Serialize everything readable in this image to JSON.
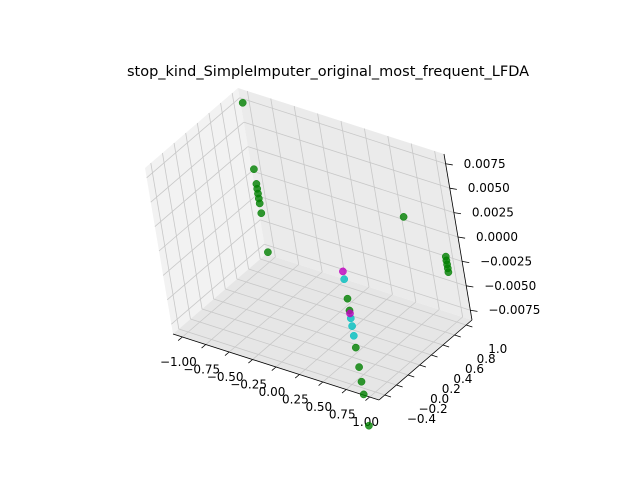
{
  "chart_data": {
    "type": "scatter",
    "projection": "3d",
    "title": "stop_kind_SimpleImputer_original_most_frequent_LFDA",
    "xlabel": "",
    "ylabel": "",
    "zlabel": "",
    "grid": true,
    "x_ticks": [
      "−1.00",
      "−0.75",
      "−0.50",
      "−0.25",
      "0.00",
      "0.25",
      "0.50",
      "0.75",
      "1.00"
    ],
    "y_ticks": [
      "−0.4",
      "−0.2",
      "0.0",
      "0.2",
      "0.4",
      "0.6",
      "0.8",
      "1.0"
    ],
    "z_ticks": [
      "−0.0075",
      "−0.0050",
      "−0.0025",
      "0.0000",
      "0.0025",
      "0.0050",
      "0.0075"
    ],
    "xlim": [
      -1.1,
      1.1
    ],
    "ylim": [
      -0.5,
      1.1
    ],
    "zlim": [
      -0.0085,
      0.0085
    ],
    "series": [
      {
        "color": "#008000",
        "points": [
          [
            -1.0,
            1.0,
            0.0078
          ],
          [
            -1.0,
            1.0,
            0.001
          ],
          [
            -1.0,
            1.0,
            -0.0005
          ],
          [
            -1.0,
            1.0,
            -0.001
          ],
          [
            -1.0,
            1.0,
            -0.0015
          ],
          [
            -1.0,
            1.0,
            -0.002
          ],
          [
            -1.0,
            1.0,
            -0.0025
          ],
          [
            -1.0,
            1.0,
            -0.0035
          ],
          [
            -1.0,
            1.0,
            -0.0075
          ],
          [
            0.9,
            0.6,
            0.004
          ],
          [
            1.0,
            1.0,
            -0.0018
          ],
          [
            1.0,
            1.0,
            -0.0022
          ],
          [
            1.0,
            1.0,
            -0.0026
          ],
          [
            1.0,
            1.0,
            -0.003
          ],
          [
            1.0,
            1.0,
            -0.0034
          ],
          [
            0.9,
            -0.45,
            0.001
          ],
          [
            0.9,
            -0.45,
            -0.0002
          ],
          [
            0.9,
            -0.45,
            -0.004
          ],
          [
            0.9,
            -0.45,
            -0.006
          ],
          [
            0.9,
            -0.45,
            -0.0075
          ],
          [
            0.9,
            -0.45,
            -0.0088
          ],
          [
            0.9,
            -0.45,
            -0.012
          ]
        ]
      },
      {
        "color": "#00bfbf",
        "points": [
          [
            0.9,
            -0.45,
            0.003
          ],
          [
            0.9,
            -0.45,
            -0.001
          ],
          [
            0.9,
            -0.45,
            -0.0018
          ],
          [
            0.9,
            -0.45,
            -0.0028
          ]
        ]
      },
      {
        "color": "#bf00bf",
        "points": [
          [
            0.9,
            -0.45,
            0.0038
          ],
          [
            0.9,
            -0.45,
            -0.0005
          ]
        ]
      }
    ]
  }
}
